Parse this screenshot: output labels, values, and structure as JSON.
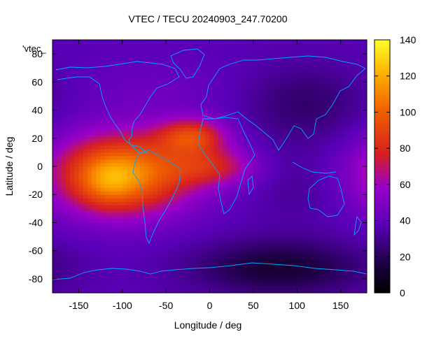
{
  "chart_data": {
    "type": "heatmap",
    "title": "VTEC / TECU 20240903_247.70200",
    "xlabel": "Longitude / deg",
    "ylabel": "Latitude / deg",
    "xlim": [
      -180,
      180
    ],
    "ylim": [
      -90,
      90
    ],
    "xticks": [
      "-150",
      "-100",
      "-50",
      "0",
      "50",
      "100",
      "150"
    ],
    "xtick_values": [
      -150,
      -100,
      -50,
      0,
      50,
      100,
      150
    ],
    "yticks": [
      "-80",
      "-60",
      "-40",
      "-20",
      "0",
      "20",
      "40",
      "60",
      "80"
    ],
    "ytick_values": [
      -80,
      -60,
      -40,
      -20,
      0,
      20,
      40,
      60,
      80
    ],
    "legend_label": "'vtec_",
    "colorbar": {
      "range": [
        0,
        140
      ],
      "ticks": [
        "0",
        "20",
        "40",
        "60",
        "80",
        "100",
        "120",
        "140"
      ],
      "tick_values": [
        0,
        20,
        40,
        60,
        80,
        100,
        120,
        140
      ],
      "palette": "black-purple-red-orange-yellow"
    },
    "field": {
      "background_tecu": 38,
      "features": [
        {
          "lon": -100,
          "lat": -5,
          "dlon": 55,
          "dlat": 20,
          "amp": 75
        },
        {
          "lon": -118,
          "lat": -12,
          "dlon": 22,
          "dlat": 12,
          "amp": 15
        },
        {
          "lon": -20,
          "lat": 22,
          "dlon": 28,
          "dlat": 9,
          "amp": 45
        },
        {
          "lon": 5,
          "lat": 0,
          "dlon": 35,
          "dlat": 10,
          "amp": 32
        },
        {
          "lon": 80,
          "lat": -72,
          "dlon": 70,
          "dlat": 14,
          "amp": -25
        },
        {
          "lon": 110,
          "lat": 45,
          "dlon": 50,
          "dlat": 20,
          "amp": -14
        },
        {
          "lon": 100,
          "lat": -15,
          "dlon": 40,
          "dlat": 20,
          "amp": -6
        },
        {
          "lon": -60,
          "lat": 55,
          "dlon": 60,
          "dlat": 15,
          "amp": 6
        }
      ]
    },
    "coastline_color": "#00a8ff"
  }
}
